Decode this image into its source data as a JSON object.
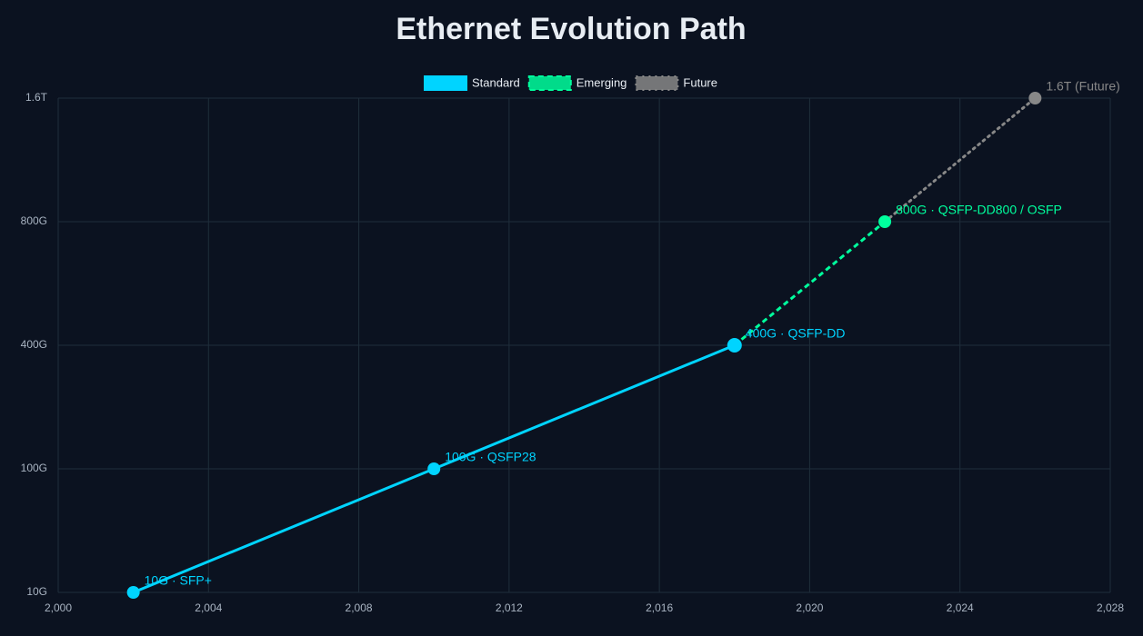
{
  "chart_data": {
    "type": "line",
    "title": "Ethernet Evolution Path",
    "y_categories": [
      "10G",
      "100G",
      "400G",
      "800G",
      "1.6T"
    ],
    "xlim": [
      2000,
      2028
    ],
    "xticks": [
      {
        "value": 2000,
        "label": "2,000"
      },
      {
        "value": 2004,
        "label": "2,004"
      },
      {
        "value": 2008,
        "label": "2,008"
      },
      {
        "value": 2012,
        "label": "2,012"
      },
      {
        "value": 2016,
        "label": "2,016"
      },
      {
        "value": 2020,
        "label": "2,020"
      },
      {
        "value": 2024,
        "label": "2,024"
      },
      {
        "value": 2028,
        "label": "2,028"
      }
    ],
    "grid": true,
    "legend": "top",
    "series": [
      {
        "name": "Standard",
        "color": "#00d4ff",
        "dash": "solid",
        "x": [
          2002,
          2010,
          2018
        ],
        "values": [
          "10G",
          "100G",
          "400G"
        ]
      },
      {
        "name": "Emerging",
        "color": "#00ff9d",
        "dash": "dashed",
        "x": [
          2018,
          2022
        ],
        "values": [
          "400G",
          "800G"
        ]
      },
      {
        "name": "Future",
        "color": "#888888",
        "dash": "dotted",
        "x": [
          2022,
          2026
        ],
        "values": [
          "800G",
          "1.6T"
        ]
      }
    ],
    "points": [
      {
        "x": 2002,
        "y": "10G",
        "label": "10G · SFP+",
        "color": "#00d4ff"
      },
      {
        "x": 2010,
        "y": "100G",
        "label": "100G · QSFP28",
        "color": "#00d4ff"
      },
      {
        "x": 2018,
        "y": "400G",
        "label": "400G · QSFP-DD",
        "color": "#00d4ff"
      },
      {
        "x": 2022,
        "y": "800G",
        "label": "800G · QSFP-DD800 / OSFP",
        "color": "#00ff9d"
      },
      {
        "x": 2026,
        "y": "1.6T",
        "label": "1.6T (Future)",
        "color": "#888888"
      }
    ]
  }
}
